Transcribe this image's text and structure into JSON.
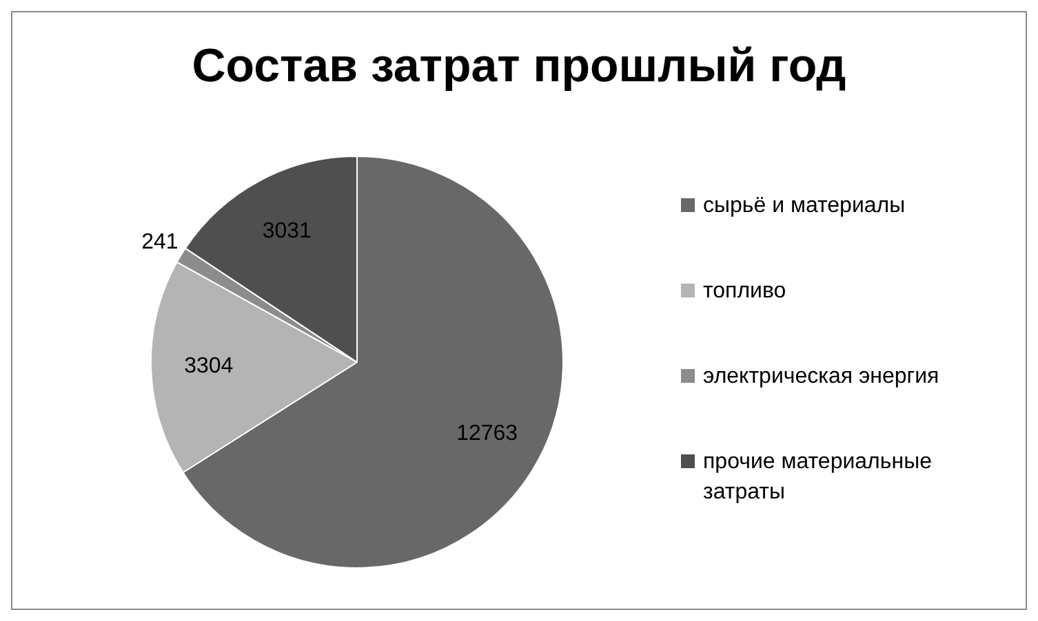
{
  "chart_data": {
    "type": "pie",
    "title": "Состав затрат прошлый год",
    "categories": [
      "сырьё и материалы",
      "топливо",
      "электрическая энергия",
      "прочие материальные затраты"
    ],
    "values": [
      12763,
      3304,
      241,
      3031
    ],
    "colors": [
      "#686868",
      "#b4b4b4",
      "#8c8c8c",
      "#4f4f4f"
    ],
    "data_labels": true,
    "legend": "right"
  }
}
